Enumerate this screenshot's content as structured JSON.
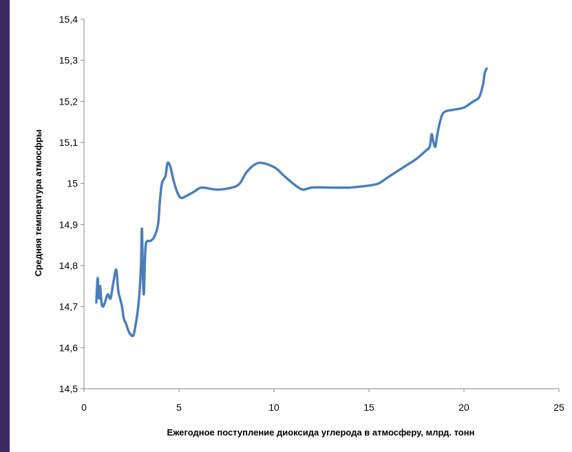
{
  "chart_data": {
    "type": "line",
    "xlabel": "Ежегодное поступление  диоксида углерода в атмосферу,  млрд. тонн",
    "ylabel": "Средняя температура атмосфры",
    "xlim": [
      0,
      25
    ],
    "ylim": [
      14.5,
      15.4
    ],
    "x_ticks": [
      "0",
      "5",
      "10",
      "15",
      "20",
      "25"
    ],
    "y_ticks": [
      "14,5",
      "14,6",
      "14,7",
      "14,8",
      "14,9",
      "15",
      "15,1",
      "15,2",
      "15,3",
      "15,4"
    ],
    "grid": false,
    "legend": "none",
    "series_color": "#4a7ebb",
    "series": [
      {
        "x": [
          0.65,
          0.72,
          0.78,
          0.85,
          0.92,
          1.0,
          1.1,
          1.25,
          1.4,
          1.55,
          1.7,
          1.8,
          1.9,
          2.0,
          2.1,
          2.2,
          2.35,
          2.5,
          2.6,
          2.7,
          2.8,
          2.9,
          3.0,
          3.05,
          3.1,
          3.15,
          3.2,
          3.25,
          3.35,
          3.5,
          3.7,
          3.9,
          4.0,
          4.1,
          4.2,
          4.3,
          4.4,
          4.55,
          4.7,
          4.9,
          5.1,
          5.4,
          5.8,
          6.2,
          7.0,
          7.8,
          8.2,
          8.6,
          9.2,
          10.0,
          10.5,
          11.0,
          11.5,
          12.0,
          13.0,
          14.0,
          15.0,
          15.5,
          16.0,
          16.5,
          17.0,
          17.5,
          18.0,
          18.2,
          18.3,
          18.4,
          18.5,
          18.6,
          18.8,
          19.0,
          19.5,
          20.0,
          20.5,
          20.8,
          21.0,
          21.1,
          21.2
        ],
        "y": [
          14.71,
          14.77,
          14.72,
          14.75,
          14.71,
          14.7,
          14.71,
          14.73,
          14.72,
          14.76,
          14.79,
          14.74,
          14.72,
          14.7,
          14.67,
          14.66,
          14.64,
          14.63,
          14.63,
          14.65,
          14.68,
          14.72,
          14.8,
          14.89,
          14.78,
          14.73,
          14.8,
          14.85,
          14.86,
          14.86,
          14.87,
          14.9,
          14.96,
          15.0,
          15.01,
          15.02,
          15.05,
          15.04,
          15.01,
          14.98,
          14.965,
          14.97,
          14.98,
          14.99,
          14.985,
          14.99,
          15.0,
          15.03,
          15.05,
          15.04,
          15.02,
          15.0,
          14.985,
          14.99,
          14.99,
          14.99,
          14.995,
          15.0,
          15.015,
          15.03,
          15.045,
          15.06,
          15.08,
          15.09,
          15.12,
          15.1,
          15.09,
          15.12,
          15.16,
          15.175,
          15.18,
          15.185,
          15.2,
          15.21,
          15.24,
          15.27,
          15.28
        ]
      }
    ]
  }
}
